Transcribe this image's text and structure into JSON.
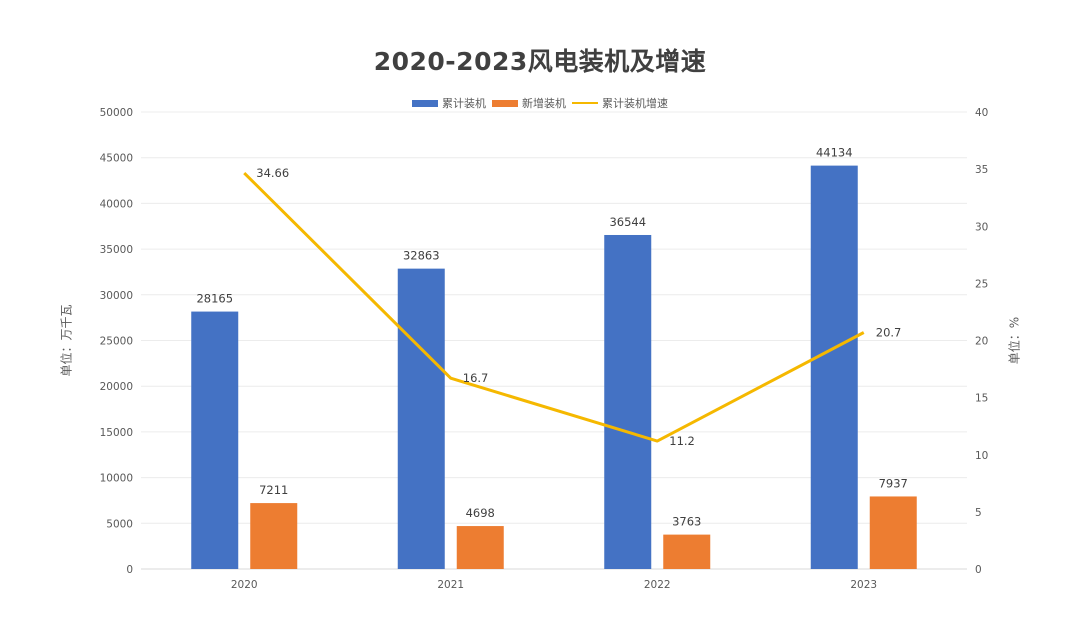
{
  "title": "2020-2023风电装机及增速",
  "legend": [
    {
      "label": "累计装机",
      "color": "#4472C4",
      "kind": "bar"
    },
    {
      "label": "新增装机",
      "color": "#ED7D31",
      "kind": "bar"
    },
    {
      "label": "累计装机增速",
      "color": "#F5B800",
      "kind": "line"
    }
  ],
  "axes": {
    "left_title": "单位：万千瓦",
    "right_title": "单位：%",
    "left_ticks": [
      "0",
      "5000",
      "10000",
      "15000",
      "20000",
      "25000",
      "30000",
      "35000",
      "40000",
      "45000",
      "50000"
    ],
    "right_ticks": [
      "0",
      "5",
      "10",
      "15",
      "20",
      "25",
      "30",
      "35",
      "40"
    ],
    "x_ticks": [
      "2020",
      "2021",
      "2022",
      "2023"
    ]
  },
  "chart_data": {
    "type": "bar",
    "title": "2020-2023风电装机及增速",
    "categories": [
      "2020",
      "2021",
      "2022",
      "2023"
    ],
    "series": [
      {
        "name": "累计装机",
        "type": "bar",
        "axis": "left",
        "color": "#4472C4",
        "values": [
          28165,
          32863,
          36544,
          44134
        ]
      },
      {
        "name": "新增装机",
        "type": "bar",
        "axis": "left",
        "color": "#ED7D31",
        "values": [
          7211,
          4698,
          3763,
          7937
        ]
      },
      {
        "name": "累计装机增速",
        "type": "line",
        "axis": "right",
        "color": "#F5B800",
        "values": [
          34.66,
          16.7,
          11.2,
          20.7
        ]
      }
    ],
    "xlabel": "",
    "ylabel": "单位：万千瓦",
    "y2label": "单位：%",
    "ylim": [
      0,
      50000
    ],
    "y2lim": [
      0,
      40
    ],
    "grid": true,
    "legend_position": "top"
  }
}
